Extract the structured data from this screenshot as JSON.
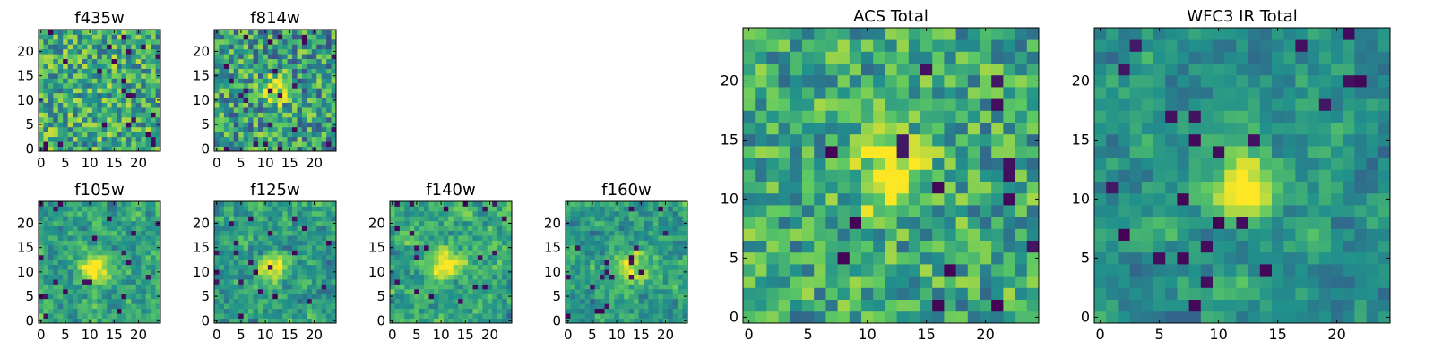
{
  "figure": {
    "colormap": "viridis",
    "cmap_stops": [
      "#440154",
      "#3b528b",
      "#21918c",
      "#5ec962",
      "#fde725"
    ],
    "axis_color": "#000000",
    "background": "#ffffff"
  },
  "chart_data": [
    {
      "type": "heatmap",
      "id": "f435w",
      "title": "f435w",
      "grid": [
        25,
        25
      ],
      "xlim": [
        0,
        24
      ],
      "ylim": [
        0,
        24
      ],
      "xticks": [
        0,
        5,
        10,
        15,
        20
      ],
      "xtick_labels": [
        "0",
        "5",
        "10",
        "15",
        "20"
      ],
      "yticks": [
        0,
        5,
        10,
        15,
        20
      ],
      "ytick_labels": [
        "0",
        "5",
        "10",
        "15",
        "20"
      ],
      "seed": 11,
      "noise": 0.3,
      "blur": 0,
      "base": 0.62,
      "dips": 0.03,
      "peak": null,
      "low_clip": 0.0
    },
    {
      "type": "heatmap",
      "id": "f814w",
      "title": "f814w",
      "grid": [
        25,
        25
      ],
      "xlim": [
        0,
        24
      ],
      "ylim": [
        0,
        24
      ],
      "xticks": [
        0,
        5,
        10,
        15,
        20
      ],
      "xtick_labels": [
        "0",
        "5",
        "10",
        "15",
        "20"
      ],
      "yticks": [
        0,
        5,
        10,
        15,
        20
      ],
      "ytick_labels": [
        "0",
        "5",
        "10",
        "15",
        "20"
      ],
      "seed": 23,
      "noise": 0.32,
      "blur": 0,
      "base": 0.55,
      "dips": 0.03,
      "peak": {
        "x": 12,
        "y": 12,
        "amp": 0.45,
        "sigma": 2.0
      },
      "low_clip": 0.0
    },
    {
      "type": "heatmap",
      "id": "f105w",
      "title": "f105w",
      "grid": [
        25,
        25
      ],
      "xlim": [
        0,
        24
      ],
      "ylim": [
        0,
        24
      ],
      "xticks": [
        0,
        5,
        10,
        15,
        20
      ],
      "xtick_labels": [
        "0",
        "5",
        "10",
        "15",
        "20"
      ],
      "yticks": [
        0,
        5,
        10,
        15,
        20
      ],
      "ytick_labels": [
        "0",
        "5",
        "10",
        "15",
        "20"
      ],
      "seed": 37,
      "noise": 0.28,
      "blur": 1,
      "base": 0.58,
      "dips": 0.03,
      "peak": {
        "x": 11,
        "y": 11,
        "amp": 0.5,
        "sigma": 2.2
      },
      "low_clip": 0.0
    },
    {
      "type": "heatmap",
      "id": "f125w",
      "title": "f125w",
      "grid": [
        25,
        25
      ],
      "xlim": [
        0,
        24
      ],
      "ylim": [
        0,
        24
      ],
      "xticks": [
        0,
        5,
        10,
        15,
        20
      ],
      "xtick_labels": [
        "0",
        "5",
        "10",
        "15",
        "20"
      ],
      "yticks": [
        0,
        5,
        10,
        15,
        20
      ],
      "ytick_labels": [
        "0",
        "5",
        "10",
        "15",
        "20"
      ],
      "seed": 41,
      "noise": 0.3,
      "blur": 1,
      "base": 0.55,
      "dips": 0.03,
      "peak": {
        "x": 12,
        "y": 11,
        "amp": 0.45,
        "sigma": 2.0
      },
      "low_clip": 0.0
    },
    {
      "type": "heatmap",
      "id": "f140w",
      "title": "f140w",
      "grid": [
        25,
        25
      ],
      "xlim": [
        0,
        24
      ],
      "ylim": [
        0,
        24
      ],
      "xticks": [
        0,
        5,
        10,
        15,
        20
      ],
      "xtick_labels": [
        "0",
        "5",
        "10",
        "15",
        "20"
      ],
      "yticks": [
        0,
        5,
        10,
        15,
        20
      ],
      "ytick_labels": [
        "0",
        "5",
        "10",
        "15",
        "20"
      ],
      "seed": 53,
      "noise": 0.3,
      "blur": 1,
      "base": 0.6,
      "dips": 0.03,
      "peak": {
        "x": 11,
        "y": 12,
        "amp": 0.45,
        "sigma": 2.0
      },
      "low_clip": 0.0
    },
    {
      "type": "heatmap",
      "id": "f160w",
      "title": "f160w",
      "grid": [
        25,
        25
      ],
      "xlim": [
        0,
        24
      ],
      "ylim": [
        0,
        24
      ],
      "xticks": [
        0,
        5,
        10,
        15,
        20
      ],
      "xtick_labels": [
        "0",
        "5",
        "10",
        "15",
        "20"
      ],
      "yticks": [
        0,
        5,
        10,
        15,
        20
      ],
      "ytick_labels": [
        "0",
        "5",
        "10",
        "15",
        "20"
      ],
      "seed": 67,
      "noise": 0.3,
      "blur": 1,
      "base": 0.55,
      "dips": 0.03,
      "peak": {
        "x": 13,
        "y": 11,
        "amp": 0.5,
        "sigma": 2.2
      },
      "low_clip": 0.0
    },
    {
      "type": "heatmap",
      "id": "acs_total",
      "title": "ACS Total",
      "grid": [
        25,
        25
      ],
      "xlim": [
        0,
        24
      ],
      "ylim": [
        0,
        24
      ],
      "xticks": [
        0,
        5,
        10,
        15,
        20
      ],
      "xtick_labels": [
        "0",
        "5",
        "10",
        "15",
        "20"
      ],
      "yticks": [
        0,
        5,
        10,
        15,
        20
      ],
      "ytick_labels": [
        "0",
        "5",
        "10",
        "15",
        "20"
      ],
      "seed": 79,
      "noise": 0.26,
      "blur": 0,
      "base": 0.6,
      "dips": 0.025,
      "peak": {
        "x": 12,
        "y": 12,
        "amp": 0.45,
        "sigma": 2.2
      },
      "low_clip": 0.0
    },
    {
      "type": "heatmap",
      "id": "wfc3_ir_total",
      "title": "WFC3 IR Total",
      "grid": [
        25,
        25
      ],
      "xlim": [
        0,
        24
      ],
      "ylim": [
        0,
        24
      ],
      "xticks": [
        0,
        5,
        10,
        15,
        20
      ],
      "xtick_labels": [
        "0",
        "5",
        "10",
        "15",
        "20"
      ],
      "yticks": [
        0,
        5,
        10,
        15,
        20
      ],
      "ytick_labels": [
        "0",
        "5",
        "10",
        "15",
        "20"
      ],
      "seed": 97,
      "noise": 0.24,
      "blur": 1,
      "base": 0.5,
      "dips": 0.035,
      "peak": {
        "x": 12,
        "y": 11,
        "amp": 0.55,
        "sigma": 2.0
      },
      "low_clip": 0.0
    }
  ]
}
